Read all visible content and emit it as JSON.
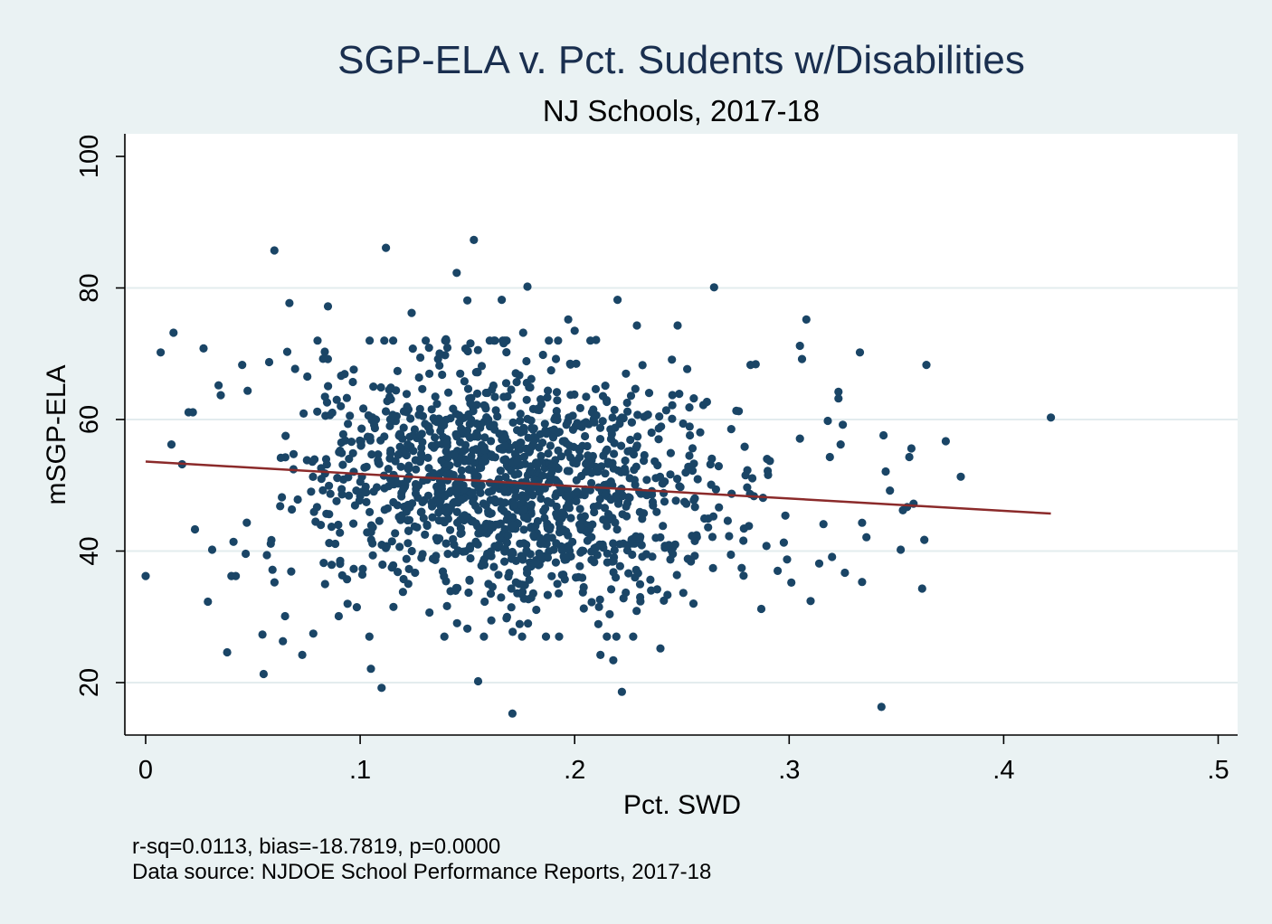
{
  "chart_data": {
    "type": "scatter",
    "title": "SGP-ELA v. Pct. Sudents w/Disabilities",
    "subtitle": "NJ Schools, 2017-18",
    "xlabel": "Pct. SWD",
    "ylabel": "mSGP-ELA",
    "xlim": [
      0,
      0.5
    ],
    "ylim": [
      15,
      100
    ],
    "x_ticks": [
      0,
      0.1,
      0.2,
      0.3,
      0.4,
      0.5
    ],
    "x_tick_labels": [
      "0",
      ".1",
      ".2",
      ".3",
      ".4",
      ".5"
    ],
    "y_ticks": [
      20,
      40,
      60,
      80,
      100
    ],
    "y_tick_labels": [
      "20",
      "40",
      "60",
      "80",
      "100"
    ],
    "grid": "horizontal",
    "fit_line": {
      "x": [
        0,
        0.422
      ],
      "y": [
        53.6,
        45.7
      ],
      "color": "#8b2a2a"
    },
    "marker_color": "#1a4566",
    "notes": [
      "r-sq=0.0113, bias=-18.7819, p=0.0000",
      "Data source: NJDOE School Performance Reports, 2017-18"
    ],
    "outlier_points": [
      [
        0.0,
        36.2
      ],
      [
        0.007,
        70.2
      ],
      [
        0.012,
        56.2
      ],
      [
        0.013,
        73.2
      ],
      [
        0.017,
        53.2
      ],
      [
        0.02,
        61.1
      ],
      [
        0.022,
        61.1
      ],
      [
        0.023,
        43.3
      ],
      [
        0.027,
        70.8
      ],
      [
        0.029,
        32.3
      ],
      [
        0.031,
        40.2
      ],
      [
        0.034,
        65.2
      ],
      [
        0.035,
        63.7
      ],
      [
        0.038,
        24.6
      ],
      [
        0.04,
        36.2
      ],
      [
        0.042,
        36.2
      ],
      [
        0.045,
        68.3
      ],
      [
        0.055,
        21.3
      ],
      [
        0.06,
        85.7
      ],
      [
        0.064,
        26.3
      ],
      [
        0.065,
        30.1
      ],
      [
        0.066,
        70.3
      ],
      [
        0.067,
        77.7
      ],
      [
        0.073,
        24.2
      ],
      [
        0.08,
        61.2
      ],
      [
        0.083,
        38.2
      ],
      [
        0.085,
        77.2
      ],
      [
        0.09,
        30.1
      ],
      [
        0.105,
        22.1
      ],
      [
        0.11,
        19.2
      ],
      [
        0.112,
        86.1
      ],
      [
        0.124,
        76.2
      ],
      [
        0.14,
        72.2
      ],
      [
        0.145,
        82.3
      ],
      [
        0.15,
        78.1
      ],
      [
        0.15,
        28.2
      ],
      [
        0.153,
        87.3
      ],
      [
        0.155,
        20.2
      ],
      [
        0.166,
        78.2
      ],
      [
        0.171,
        15.3
      ],
      [
        0.176,
        73.2
      ],
      [
        0.178,
        80.2
      ],
      [
        0.197,
        75.2
      ],
      [
        0.2,
        73.5
      ],
      [
        0.21,
        72.1
      ],
      [
        0.212,
        24.2
      ],
      [
        0.218,
        23.4
      ],
      [
        0.22,
        78.2
      ],
      [
        0.222,
        18.6
      ],
      [
        0.229,
        74.3
      ],
      [
        0.24,
        25.2
      ],
      [
        0.248,
        74.3
      ],
      [
        0.265,
        80.1
      ],
      [
        0.282,
        68.3
      ],
      [
        0.287,
        31.2
      ],
      [
        0.301,
        35.2
      ],
      [
        0.305,
        57.1
      ],
      [
        0.306,
        69.2
      ],
      [
        0.305,
        71.2
      ],
      [
        0.308,
        75.2
      ],
      [
        0.31,
        32.4
      ],
      [
        0.314,
        38.1
      ],
      [
        0.316,
        44.1
      ],
      [
        0.318,
        59.8
      ],
      [
        0.319,
        54.3
      ],
      [
        0.32,
        39.1
      ],
      [
        0.323,
        64.2
      ],
      [
        0.323,
        63.2
      ],
      [
        0.324,
        56.2
      ],
      [
        0.325,
        59.2
      ],
      [
        0.326,
        36.7
      ],
      [
        0.333,
        70.2
      ],
      [
        0.334,
        35.3
      ],
      [
        0.334,
        44.3
      ],
      [
        0.336,
        42.1
      ],
      [
        0.343,
        16.3
      ],
      [
        0.344,
        57.6
      ],
      [
        0.345,
        52.1
      ],
      [
        0.347,
        49.2
      ],
      [
        0.352,
        40.2
      ],
      [
        0.353,
        46.2
      ],
      [
        0.355,
        46.7
      ],
      [
        0.356,
        54.3
      ],
      [
        0.357,
        55.6
      ],
      [
        0.358,
        47.2
      ],
      [
        0.362,
        34.3
      ],
      [
        0.363,
        41.7
      ],
      [
        0.364,
        68.3
      ],
      [
        0.373,
        56.7
      ],
      [
        0.38,
        51.3
      ],
      [
        0.422,
        60.3
      ]
    ]
  }
}
